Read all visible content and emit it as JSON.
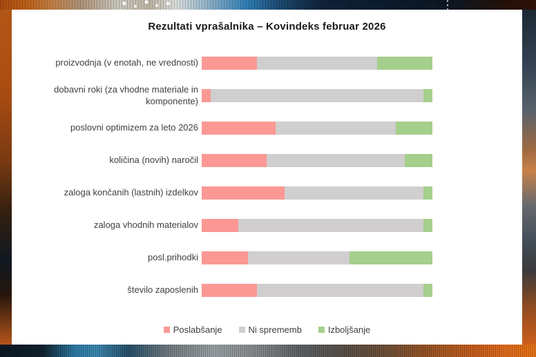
{
  "title": "Rezultati vprašalnika – Kovindeks februar 2026",
  "colors": {
    "poslabsanje": "#FB9894",
    "ni_sprememb": "#D0CECE",
    "izboljsanje": "#A5CF8C",
    "panel_background": "#FFFFFF",
    "text": "#404040"
  },
  "chart_data": {
    "type": "bar",
    "orientation": "horizontal",
    "stacked": true,
    "unit": "percent",
    "title": "Rezultati vprašalnika – Kovindeks februar 2026",
    "xlabel": "",
    "ylabel": "",
    "xlim": [
      0,
      100
    ],
    "grid": false,
    "legend_position": "bottom",
    "categories": [
      "proizvodnja (v enotah, ne vrednosti)",
      "dobavni roki (za vhodne materiale in komponente)",
      "poslovni optimizem za leto 2026",
      "količina (novih) naročil",
      "zaloga končanih (lastnih) izdelkov",
      "zaloga vhodnih materialov",
      "posl.prihodki",
      "število zaposlenih"
    ],
    "series": [
      {
        "name": "Poslabšanje",
        "color": "#FB9894",
        "values": [
          24,
          4,
          32,
          28,
          36,
          16,
          20,
          24
        ]
      },
      {
        "name": "Ni sprememb",
        "color": "#D0CECE",
        "values": [
          52,
          92,
          52,
          60,
          60,
          80,
          44,
          72
        ]
      },
      {
        "name": "Izboljšanje",
        "color": "#A5CF8C",
        "values": [
          24,
          4,
          16,
          12,
          4,
          4,
          36,
          4
        ]
      }
    ]
  },
  "legend": [
    {
      "label": "Poslabšanje",
      "color": "#FB9894"
    },
    {
      "label": "Ni sprememb",
      "color": "#D0CECE"
    },
    {
      "label": "Izboljšanje",
      "color": "#A5CF8C"
    }
  ]
}
